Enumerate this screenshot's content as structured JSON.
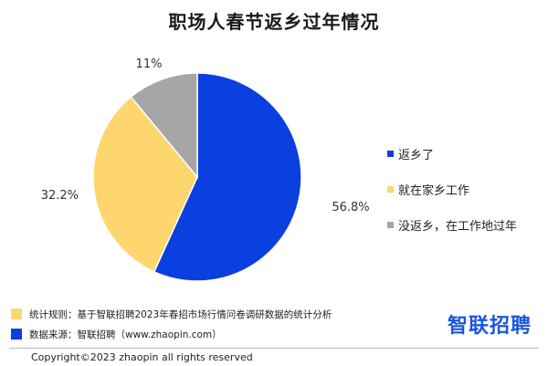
{
  "chart_data": {
    "type": "pie",
    "title": "职场人春节返乡过年情况",
    "slices": [
      {
        "label": "返乡了",
        "value": 56.8,
        "display": "56.8%",
        "color": "#0a3fe0"
      },
      {
        "label": "就在家乡工作",
        "value": 32.2,
        "display": "32.2%",
        "color": "#fed66e"
      },
      {
        "label": "没返乡，在工作地过年",
        "value": 11,
        "display": "11%",
        "color": "#a6a6a6"
      }
    ],
    "start_angle_deg": 0,
    "direction": "clockwise",
    "legend_position": "right"
  },
  "notes": [
    {
      "text": "统计规则：基于智联招聘2023年春招市场行情问卷调研数据的统计分析",
      "color": "#fed66e"
    },
    {
      "text": "数据来源：智联招聘（www.zhaopin.com）",
      "color": "#0a3fe0"
    }
  ],
  "brand": {
    "name": "智联招聘",
    "color": "#1a56e0"
  },
  "footer": {
    "copyright": "Copyright©2023 zhaopin all rights reserved"
  }
}
